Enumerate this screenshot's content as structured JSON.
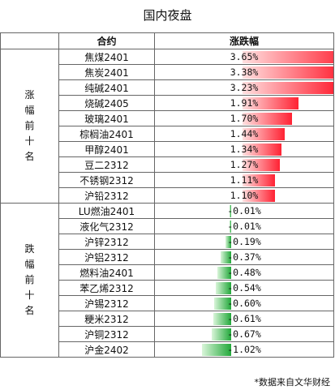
{
  "title": "国内夜盘",
  "header": {
    "contract": "合约",
    "change": "涨跌幅"
  },
  "groups": {
    "gainers_label": "涨幅前十名",
    "losers_label": "跌幅前十名"
  },
  "colors": {
    "gain_bar": "#ff2233",
    "loss_bar": "#22a83a"
  },
  "gainers": [
    {
      "name": "焦煤2401",
      "pct": "3.65%",
      "value": 3.65
    },
    {
      "name": "焦炭2401",
      "pct": "3.38%",
      "value": 3.38
    },
    {
      "name": "纯碱2401",
      "pct": "3.23%",
      "value": 3.23
    },
    {
      "name": "烧碱2405",
      "pct": "1.91%",
      "value": 1.91
    },
    {
      "name": "玻璃2401",
      "pct": "1.70%",
      "value": 1.7
    },
    {
      "name": "棕榈油2401",
      "pct": "1.44%",
      "value": 1.44
    },
    {
      "name": "甲醇2401",
      "pct": "1.34%",
      "value": 1.34
    },
    {
      "name": "豆二2312",
      "pct": "1.27%",
      "value": 1.27
    },
    {
      "name": "不锈钢2312",
      "pct": "1.11%",
      "value": 1.11
    },
    {
      "name": "沪铅2312",
      "pct": "1.10%",
      "value": 1.1
    }
  ],
  "losers": [
    {
      "name": "LU燃油2401",
      "pct": "-0.01%",
      "value": -0.01
    },
    {
      "name": "液化气2312",
      "pct": "-0.01%",
      "value": -0.01
    },
    {
      "name": "沪锌2312",
      "pct": "-0.19%",
      "value": -0.19
    },
    {
      "name": "沪铝2312",
      "pct": "-0.37%",
      "value": -0.37
    },
    {
      "name": "燃料油2401",
      "pct": "-0.48%",
      "value": -0.48
    },
    {
      "name": "苯乙烯2312",
      "pct": "-0.54%",
      "value": -0.54
    },
    {
      "name": "沪锡2312",
      "pct": "-0.60%",
      "value": -0.6
    },
    {
      "name": "粳米2312",
      "pct": "-0.61%",
      "value": -0.61
    },
    {
      "name": "沪铜2312",
      "pct": "-0.67%",
      "value": -0.67
    },
    {
      "name": "沪金2402",
      "pct": "-1.02%",
      "value": -1.02
    }
  ],
  "source": "*数据来自文华财经"
}
